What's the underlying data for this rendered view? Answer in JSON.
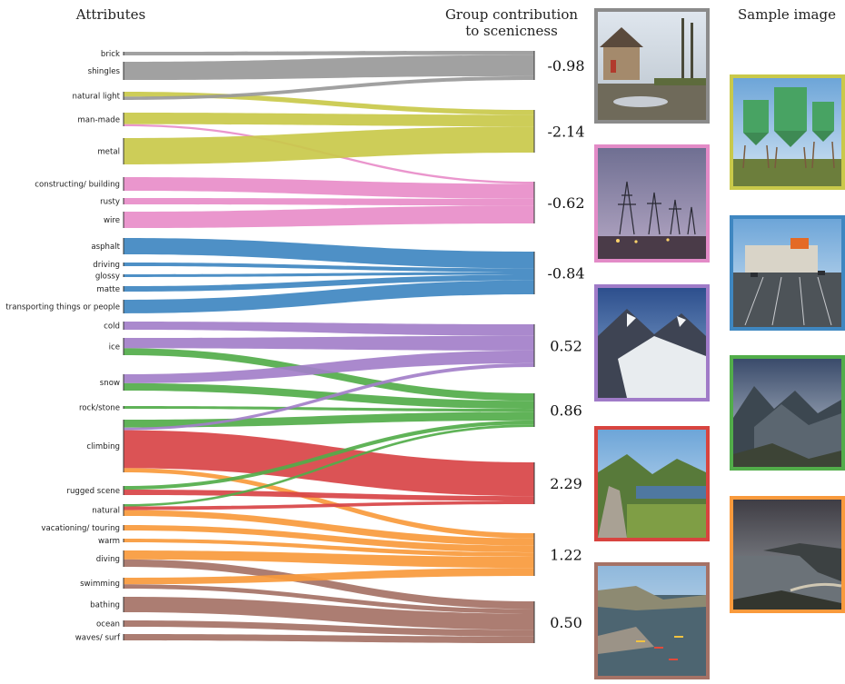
{
  "headers": {
    "attributes": "Attributes",
    "group_line1": "Group contribution",
    "group_line2": "to scenicness",
    "sample": "Sample image"
  },
  "chart_data": {
    "type": "sankey",
    "groups": [
      {
        "id": "gray",
        "color": "#999999",
        "contribution": "-0.98"
      },
      {
        "id": "olive",
        "color": "#c9c94a",
        "contribution": "-2.14"
      },
      {
        "id": "pink",
        "color": "#e88dc9",
        "contribution": "-0.62"
      },
      {
        "id": "blue",
        "color": "#3f87c1",
        "contribution": "-0.84"
      },
      {
        "id": "purple",
        "color": "#a37fc9",
        "contribution": "0.52"
      },
      {
        "id": "green",
        "color": "#52ad4a",
        "contribution": "0.86"
      },
      {
        "id": "red",
        "color": "#d84446",
        "contribution": "2.29"
      },
      {
        "id": "orange",
        "color": "#f99a3c",
        "contribution": "1.22"
      },
      {
        "id": "brown",
        "color": "#a57266",
        "contribution": "0.50"
      }
    ],
    "attributes": [
      {
        "label": "brick",
        "flows": [
          [
            "gray",
            1
          ]
        ]
      },
      {
        "label": "shingles",
        "flows": [
          [
            "gray",
            1
          ]
        ]
      },
      {
        "label": "natural light",
        "flows": [
          [
            "olive",
            0.6
          ],
          [
            "gray",
            0.4
          ]
        ]
      },
      {
        "label": "man-made",
        "flows": [
          [
            "olive",
            0.85
          ],
          [
            "pink",
            0.15
          ]
        ]
      },
      {
        "label": "metal",
        "flows": [
          [
            "olive",
            1
          ]
        ]
      },
      {
        "label": "constructing/ building",
        "flows": [
          [
            "pink",
            1
          ]
        ]
      },
      {
        "label": "rusty",
        "flows": [
          [
            "pink",
            1
          ]
        ]
      },
      {
        "label": "wire",
        "flows": [
          [
            "pink",
            1
          ]
        ]
      },
      {
        "label": "asphalt",
        "flows": [
          [
            "blue",
            1
          ]
        ]
      },
      {
        "label": "driving",
        "flows": [
          [
            "blue",
            1
          ]
        ]
      },
      {
        "label": "glossy",
        "flows": [
          [
            "blue",
            1
          ]
        ]
      },
      {
        "label": "matte",
        "flows": [
          [
            "blue",
            1
          ]
        ]
      },
      {
        "label": "transporting things or people",
        "flows": [
          [
            "blue",
            1
          ]
        ]
      },
      {
        "label": "cold",
        "flows": [
          [
            "purple",
            1
          ]
        ]
      },
      {
        "label": "ice",
        "flows": [
          [
            "purple",
            0.6
          ],
          [
            "green",
            0.4
          ]
        ]
      },
      {
        "label": "snow",
        "flows": [
          [
            "purple",
            0.55
          ],
          [
            "green",
            0.45
          ]
        ]
      },
      {
        "label": "rock/stone",
        "flows": [
          [
            "green",
            1
          ]
        ]
      },
      {
        "label": "climbing",
        "flows": [
          [
            "green",
            0.15
          ],
          [
            "purple",
            0.05
          ],
          [
            "red",
            0.72
          ],
          [
            "orange",
            0.08
          ]
        ]
      },
      {
        "label": "rugged scene",
        "flows": [
          [
            "green",
            0.4
          ],
          [
            "red",
            0.6
          ]
        ]
      },
      {
        "label": "natural",
        "flows": [
          [
            "green",
            0.2
          ],
          [
            "red",
            0.3
          ],
          [
            "orange",
            0.5
          ]
        ]
      },
      {
        "label": "vacationing/ touring",
        "flows": [
          [
            "orange",
            1
          ]
        ]
      },
      {
        "label": "warm",
        "flows": [
          [
            "orange",
            1
          ]
        ]
      },
      {
        "label": "diving",
        "flows": [
          [
            "orange",
            0.55
          ],
          [
            "brown",
            0.45
          ]
        ]
      },
      {
        "label": "swimming",
        "flows": [
          [
            "orange",
            0.6
          ],
          [
            "brown",
            0.4
          ]
        ]
      },
      {
        "label": "bathing",
        "flows": [
          [
            "brown",
            1
          ]
        ]
      },
      {
        "label": "ocean",
        "flows": [
          [
            "brown",
            1
          ]
        ]
      },
      {
        "label": "waves/ surf",
        "flows": [
          [
            "brown",
            1
          ]
        ]
      }
    ]
  },
  "images": {
    "group_images": [
      {
        "group": "gray",
        "icon": "countryside-road-photo"
      },
      {
        "group": "pink",
        "icon": "power-pylons-photo"
      },
      {
        "group": "purple",
        "icon": "snowy-mountain-photo"
      },
      {
        "group": "red",
        "icon": "valley-path-photo"
      },
      {
        "group": "brown",
        "icon": "sea-kayak-photo"
      }
    ],
    "sample_images": [
      {
        "group": "olive",
        "icon": "green-silos-photo"
      },
      {
        "group": "blue",
        "icon": "parking-lot-photo"
      },
      {
        "group": "green",
        "icon": "highland-mountains-photo"
      },
      {
        "group": "orange",
        "icon": "coastal-bay-photo"
      }
    ]
  }
}
